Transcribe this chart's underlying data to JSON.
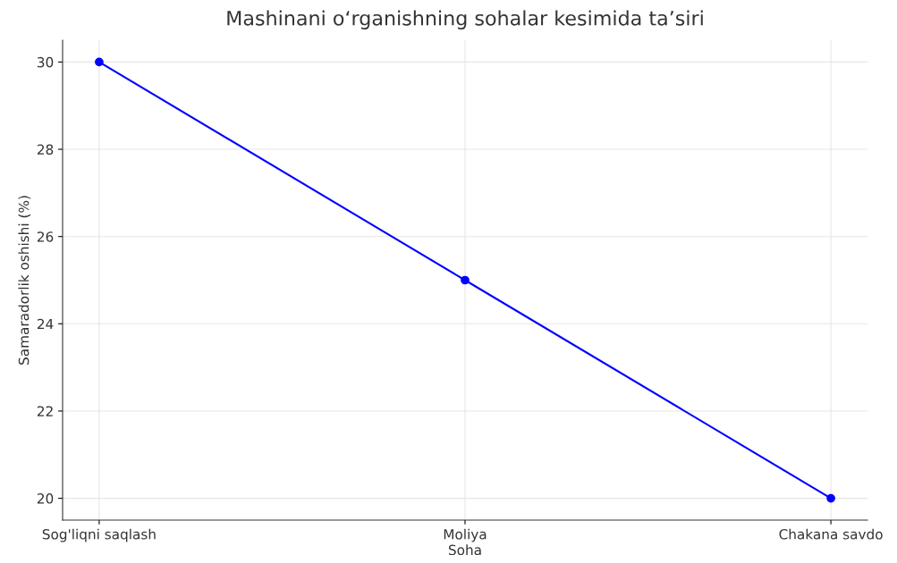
{
  "chart_data": {
    "type": "line",
    "title": "Mashinani oʻrganishning sohalar kesimida taʼsiri",
    "xlabel": "Soha",
    "ylabel": "Samaradorlik oshishi (%)",
    "categories": [
      "Sog'liqni saqlash",
      "Moliya",
      "Chakana savdo"
    ],
    "series": [
      {
        "color": "#0000ff",
        "values": [
          30,
          25,
          20
        ]
      }
    ],
    "ylim": [
      19.5,
      30.5
    ],
    "yticks": [
      20,
      22,
      24,
      26,
      28,
      30
    ],
    "grid": true,
    "marker": "circle",
    "line_style": "solid"
  }
}
